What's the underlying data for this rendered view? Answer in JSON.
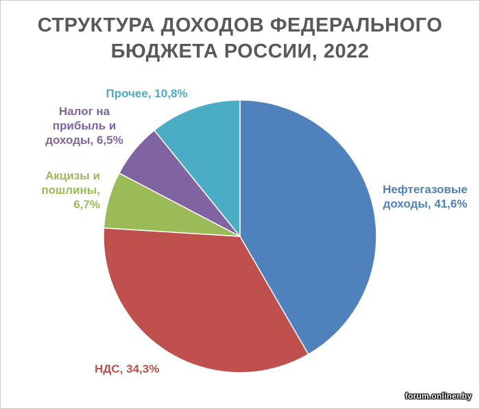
{
  "chart_data": {
    "type": "pie",
    "title_lines": [
      "СТРУКТУРА ДОХОДОВ ФЕДЕРАЛЬНОГО",
      "БЮДЖЕТА РОССИИ, 2022"
    ],
    "slices": [
      {
        "name": "Нефтегазовые доходы",
        "value": 41.6,
        "color": "#4f81bd",
        "label_lines": [
          "Нефтегазовые",
          "доходы, 41,6%"
        ]
      },
      {
        "name": "НДС",
        "value": 34.3,
        "color": "#c0504d",
        "label_lines": [
          "НДС, 34,3%"
        ]
      },
      {
        "name": "Акцизы и пошлины",
        "value": 6.7,
        "color": "#9bbb59",
        "label_lines": [
          "Акцизы и",
          "пошлины,",
          "6,7%"
        ]
      },
      {
        "name": "Налог на прибыль и доходы",
        "value": 6.5,
        "color": "#8064a2",
        "label_lines": [
          "Налог на",
          "прибыль и",
          "доходы, 6,5%"
        ]
      },
      {
        "name": "Прочее",
        "value": 10.8,
        "color": "#4bacc6",
        "label_lines": [
          "Прочее, 10,8%"
        ]
      }
    ],
    "start_angle": "12 o'clock",
    "direction": "clockwise",
    "legend": "none"
  },
  "watermark": "forum.onliner.by"
}
